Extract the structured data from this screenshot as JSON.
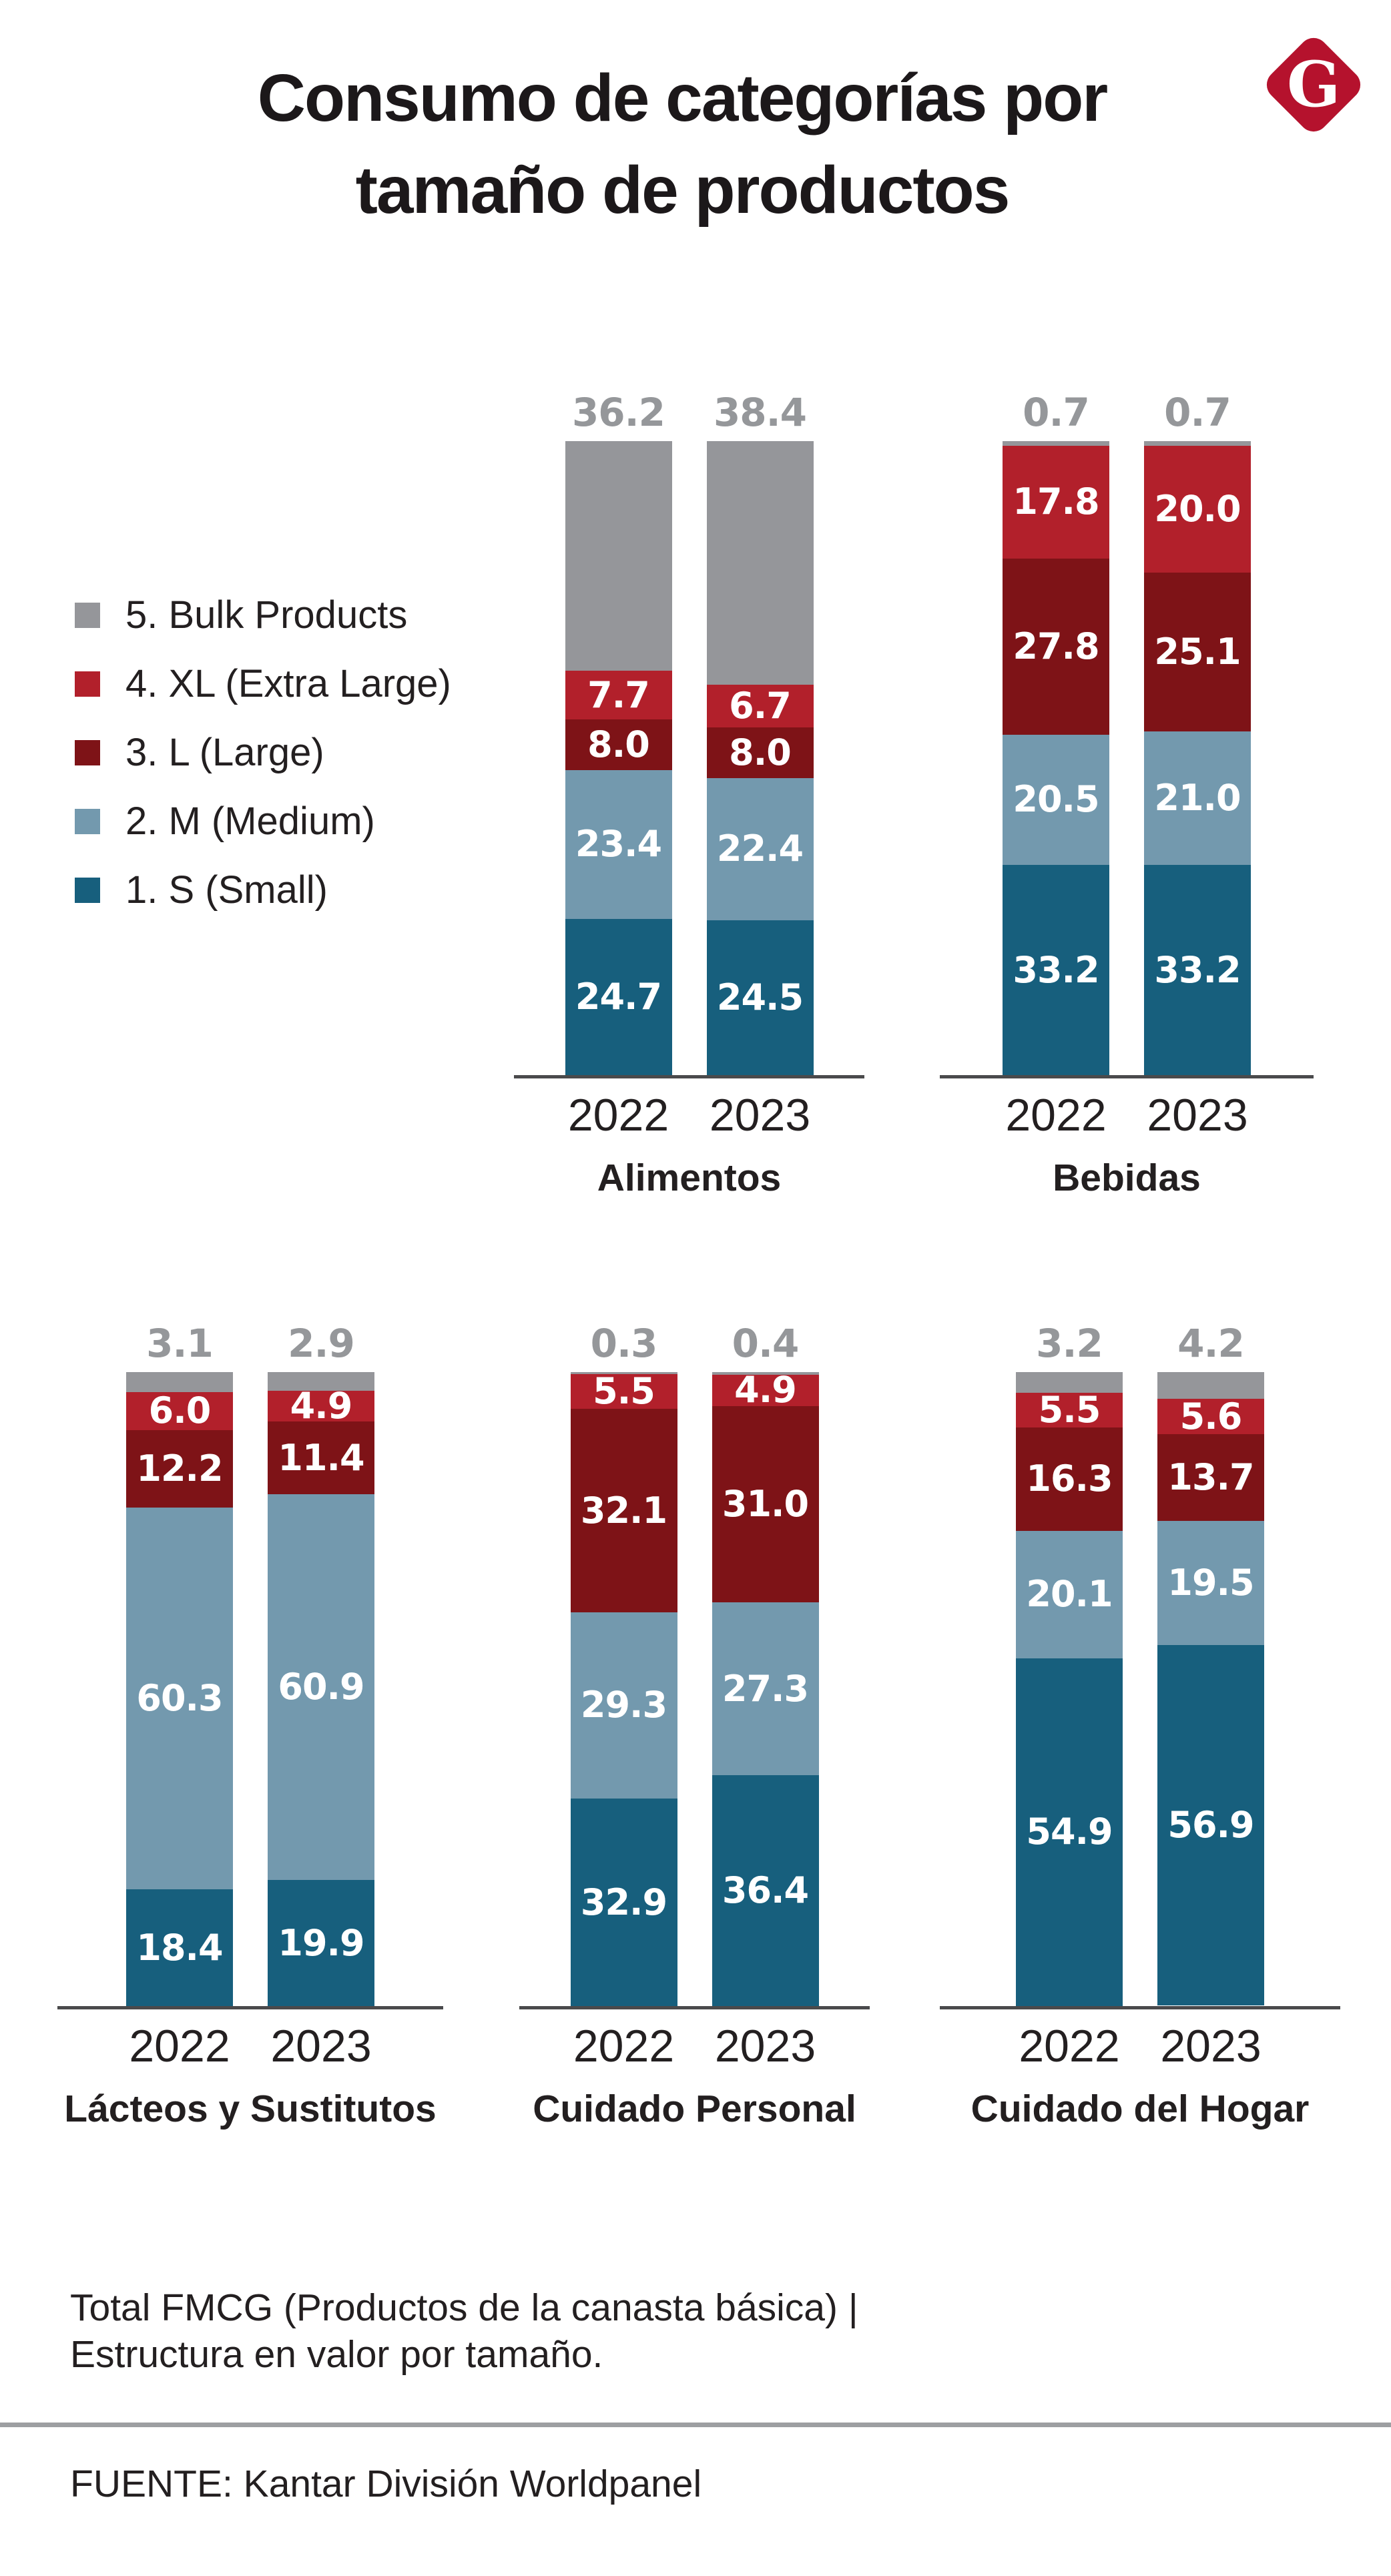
{
  "header": {
    "title_line1": "Consumo de categorías por",
    "title_line2": "tamaño de productos",
    "logo_letter": "G",
    "logo_color": "#b5122d"
  },
  "legend": {
    "items": [
      {
        "key": "bulk",
        "label": "5. Bulk Products"
      },
      {
        "key": "xl",
        "label": "4. XL (Extra Large)"
      },
      {
        "key": "l",
        "label": "3. L (Large)"
      },
      {
        "key": "m",
        "label": "2. M (Medium)"
      },
      {
        "key": "s",
        "label": "1. S (Small)"
      }
    ]
  },
  "chart_data": {
    "type": "bar",
    "stacked": true,
    "percent": true,
    "title": "Consumo de categorías por tamaño de productos",
    "ylim": [
      0,
      100
    ],
    "grid": false,
    "legend_position": "left",
    "years": [
      "2022",
      "2023"
    ],
    "segment_keys": [
      "bulk",
      "xl",
      "l",
      "m",
      "s"
    ],
    "segment_names": {
      "bulk": "5. Bulk Products",
      "xl": "4. XL (Extra Large)",
      "l": "3. L (Large)",
      "m": "2. M (Medium)",
      "s": "1. S (Small)"
    },
    "colors": {
      "bulk": "#95969a",
      "xl": "#b2202b",
      "l": "#7e1317",
      "m": "#7399ae",
      "s": "#175f7d",
      "total_label": "#95979a"
    },
    "charts": [
      {
        "category": "Alimentos",
        "values": {
          "2022": {
            "bulk": "36.2",
            "xl": "7.7",
            "l": "8.0",
            "m": "23.4",
            "s": "24.7"
          },
          "2023": {
            "bulk": "38.4",
            "xl": "6.7",
            "l": "8.0",
            "m": "22.4",
            "s": "24.5"
          }
        }
      },
      {
        "category": "Bebidas",
        "values": {
          "2022": {
            "bulk": "0.7",
            "xl": "17.8",
            "l": "27.8",
            "m": "20.5",
            "s": "33.2"
          },
          "2023": {
            "bulk": "0.7",
            "xl": "20.0",
            "l": "25.1",
            "m": "21.0",
            "s": "33.2"
          }
        }
      },
      {
        "category": "Lácteos y Sustitutos",
        "values": {
          "2022": {
            "bulk": "3.1",
            "xl": "6.0",
            "l": "12.2",
            "m": "60.3",
            "s": "18.4"
          },
          "2023": {
            "bulk": "2.9",
            "xl": "4.9",
            "l": "11.4",
            "m": "60.9",
            "s": "19.9"
          }
        }
      },
      {
        "category": "Cuidado Personal",
        "values": {
          "2022": {
            "bulk": "0.3",
            "xl": "5.5",
            "l": "32.1",
            "m": "29.3",
            "s": "32.9"
          },
          "2023": {
            "bulk": "0.4",
            "xl": "4.9",
            "l": "31.0",
            "m": "27.3",
            "s": "36.4"
          }
        }
      },
      {
        "category": "Cuidado del Hogar",
        "values": {
          "2022": {
            "bulk": "3.2",
            "xl": "5.5",
            "l": "16.3",
            "m": "20.1",
            "s": "54.9"
          },
          "2023": {
            "bulk": "4.2",
            "xl": "5.6",
            "l": "13.7",
            "m": "19.5",
            "s": "56.9"
          }
        }
      }
    ]
  },
  "footer": {
    "note_line1": "Total FMCG (Productos de la canasta básica) |",
    "note_line2": "Estructura en valor por tamaño.",
    "source": "FUENTE: Kantar División Worldpanel"
  }
}
